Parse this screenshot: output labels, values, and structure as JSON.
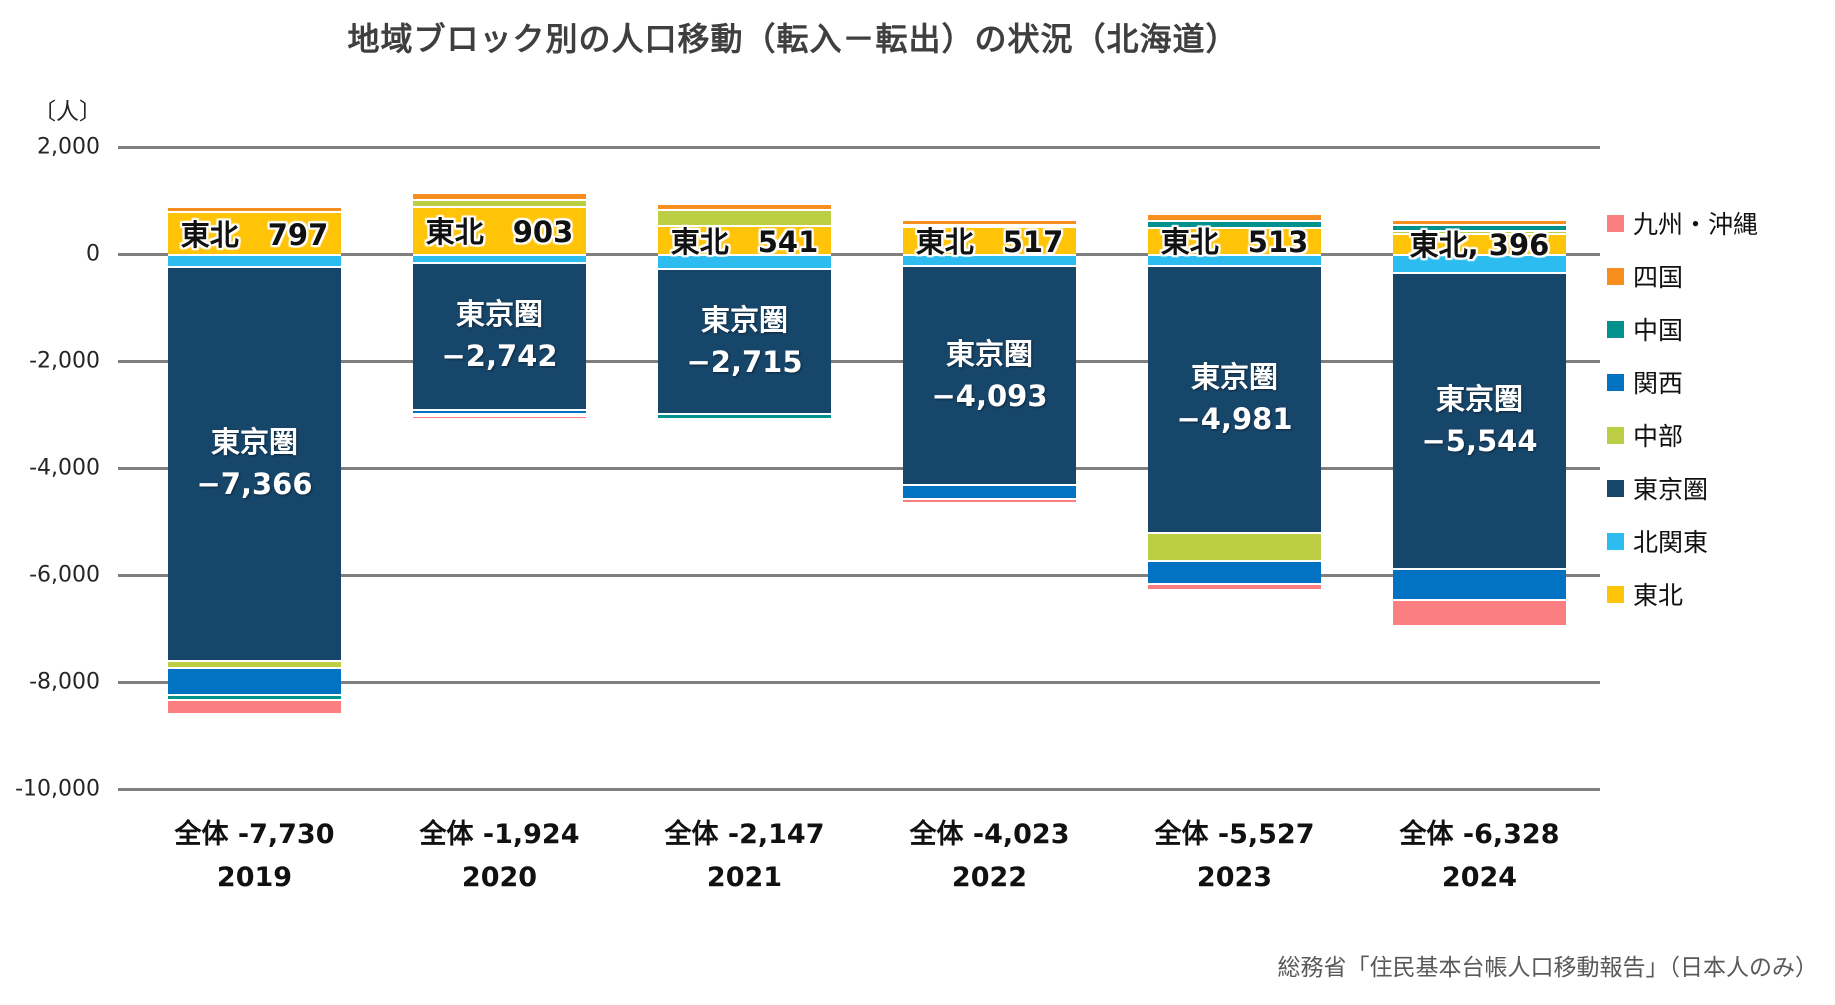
{
  "title": "地域ブロック別の人口移動（転入－転出）の状況（北海道）",
  "y_axis": {
    "unit_label": "〔人〕",
    "ticks": [
      "2,000",
      "0",
      "-2,000",
      "-4,000",
      "-6,000",
      "-8,000",
      "-10,000"
    ],
    "tick_values": [
      2000,
      0,
      -2000,
      -4000,
      -6000,
      -8000,
      -10000
    ]
  },
  "source": "総務省「住民基本台帳人口移動報告」（日本人のみ）",
  "legend": [
    {
      "key": "kyushu-okinawa",
      "label": "九州・沖縄",
      "color": "#fb7e81"
    },
    {
      "key": "shikoku",
      "label": "四国",
      "color": "#f78f1e"
    },
    {
      "key": "chugoku",
      "label": "中国",
      "color": "#02918d"
    },
    {
      "key": "kansai",
      "label": "関西",
      "color": "#0272c2"
    },
    {
      "key": "chubu",
      "label": "中部",
      "color": "#bccf44"
    },
    {
      "key": "tokyoken",
      "label": "東京圏",
      "color": "#17466b"
    },
    {
      "key": "kitakanto",
      "label": "北関東",
      "color": "#2cbcef"
    },
    {
      "key": "tohoku",
      "label": "東北",
      "color": "#ffc407"
    }
  ],
  "chart_data": {
    "type": "bar",
    "stacked": true,
    "categories": [
      "2019",
      "2020",
      "2021",
      "2022",
      "2023",
      "2024"
    ],
    "ylim": [
      -10000,
      2000
    ],
    "grid": true,
    "legend_position": "right",
    "series": [
      {
        "key": "tohoku",
        "name": "東北",
        "color": "#ffc407",
        "values": [
          797,
          903,
          541,
          517,
          513,
          396
        ]
      },
      {
        "key": "kitakanto",
        "name": "北関東",
        "color": "#2cbcef",
        "values": [
          -230,
          -150,
          -263,
          -210,
          -210,
          -330
        ]
      },
      {
        "key": "tokyoken",
        "name": "東京圏",
        "color": "#17466b",
        "values": [
          -7366,
          -2742,
          -2715,
          -4093,
          -4981,
          -5544
        ]
      },
      {
        "key": "chubu",
        "name": "中部",
        "color": "#bccf44",
        "values": [
          -130,
          130,
          300,
          50,
          -520,
          56
        ]
      },
      {
        "key": "kansai",
        "name": "関西",
        "color": "#0272c2",
        "values": [
          -500,
          -75,
          0,
          -260,
          -430,
          -580
        ]
      },
      {
        "key": "chugoku",
        "name": "中国",
        "color": "#02918d",
        "values": [
          -100,
          -50,
          -85,
          0,
          131,
          100
        ]
      },
      {
        "key": "shikoku",
        "name": "四国",
        "color": "#f78f1e",
        "values": [
          56,
          90,
          75,
          49,
          84,
          56
        ]
      },
      {
        "key": "kyushu-okinawa",
        "name": "九州・沖縄",
        "color": "#fb7e81",
        "values": [
          -257,
          -30,
          0,
          -76,
          -114,
          -482
        ]
      }
    ],
    "totals": {
      "values": [
        -7730,
        -1924,
        -2147,
        -4023,
        -5527,
        -6328
      ],
      "labels": [
        "全体 -7,730",
        "全体 -1,924",
        "全体 -2,147",
        "全体 -4,023",
        "全体 -5,527",
        "全体 -6,328"
      ]
    },
    "bar_value_labels": {
      "tohoku": [
        "東北　797",
        "東北　903",
        "東北　541",
        "東北　517",
        "東北　513",
        "東北, 396"
      ],
      "tokyoken_name": "東京圏",
      "tokyoken_values": [
        "−7,366",
        "−2,742",
        "−2,715",
        "−4,093",
        "−4,981",
        "−5,544"
      ]
    }
  }
}
